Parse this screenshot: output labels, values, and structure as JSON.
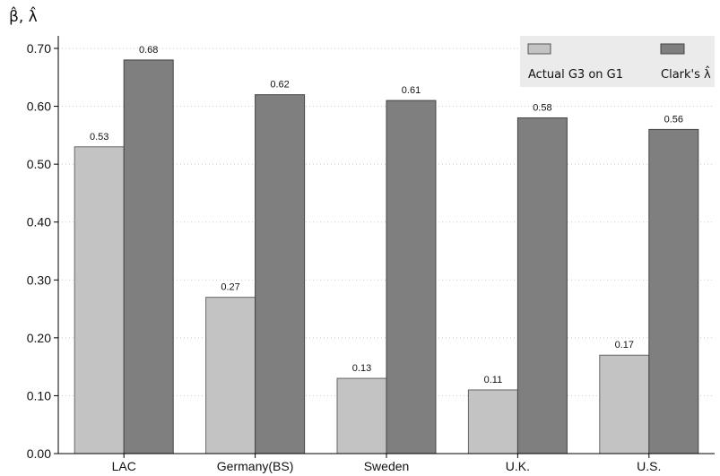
{
  "chart_data": {
    "type": "bar",
    "ylabel": "β̂, λ̂",
    "categories": [
      "LAC",
      "Germany(BS)",
      "Sweden",
      "U.K.",
      "U.S."
    ],
    "ylim": [
      0,
      0.7
    ],
    "yticks": [
      "0.00",
      "0.10",
      "0.20",
      "0.30",
      "0.40",
      "0.50",
      "0.60",
      "0.70"
    ],
    "grid": "horizontal dotted",
    "legend_position": "top-right",
    "series": [
      {
        "name": "Actual G3 on G1",
        "color": "#c3c3c3",
        "values": [
          0.53,
          0.27,
          0.13,
          0.11,
          0.17
        ],
        "labels": [
          "0.53",
          "0.27",
          "0.13",
          "0.11",
          "0.17"
        ]
      },
      {
        "name": "Clark's λ̂",
        "color": "#7f7f7f",
        "values": [
          0.68,
          0.62,
          0.61,
          0.58,
          0.56
        ],
        "labels": [
          "0.68",
          "0.62",
          "0.61",
          "0.58",
          "0.56"
        ]
      }
    ]
  }
}
